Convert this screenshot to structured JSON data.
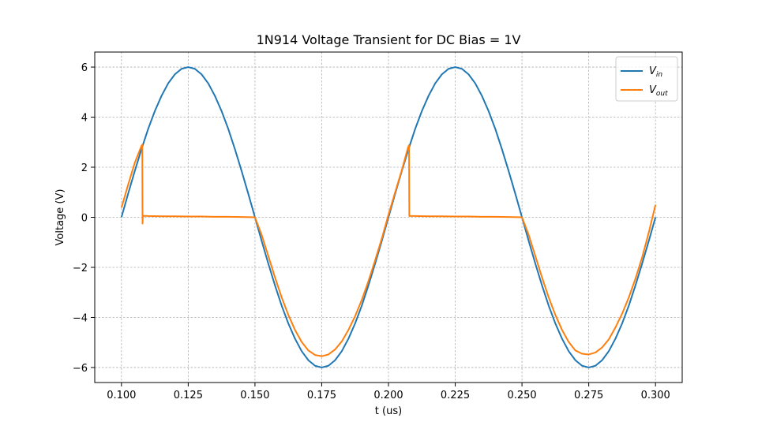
{
  "chart_data": {
    "type": "line",
    "title": "1N914 Voltage Transient for DC Bias = 1V",
    "xlabel": "t (us)",
    "ylabel": "Voltage (V)",
    "xlim": [
      0.09,
      0.31
    ],
    "ylim": [
      -6.6,
      6.6
    ],
    "xticks": [
      0.1,
      0.125,
      0.15,
      0.175,
      0.2,
      0.225,
      0.25,
      0.275,
      0.3
    ],
    "xtick_labels": [
      "0.100",
      "0.125",
      "0.150",
      "0.175",
      "0.200",
      "0.225",
      "0.250",
      "0.275",
      "0.300"
    ],
    "yticks": [
      -6,
      -4,
      -2,
      0,
      2,
      4,
      6
    ],
    "ytick_labels": [
      "−6",
      "−4",
      "−2",
      "0",
      "2",
      "4",
      "6"
    ],
    "grid": true,
    "grid_style": "dashed",
    "legend_position": "upper-right",
    "series": [
      {
        "name_base": "V",
        "name_sub": "in",
        "color": "#1f77b4",
        "x": [
          0.1,
          0.1025,
          0.105,
          0.1075,
          0.11,
          0.1125,
          0.115,
          0.1175,
          0.12,
          0.1225,
          0.125,
          0.1275,
          0.13,
          0.1325,
          0.135,
          0.1375,
          0.14,
          0.1425,
          0.145,
          0.1475,
          0.15,
          0.1525,
          0.155,
          0.1575,
          0.16,
          0.1625,
          0.165,
          0.1675,
          0.17,
          0.1725,
          0.175,
          0.1775,
          0.18,
          0.1825,
          0.185,
          0.1875,
          0.19,
          0.1925,
          0.195,
          0.1975,
          0.2,
          0.2025,
          0.205,
          0.2075,
          0.21,
          0.2125,
          0.215,
          0.2175,
          0.22,
          0.2225,
          0.225,
          0.2275,
          0.23,
          0.2325,
          0.235,
          0.2375,
          0.24,
          0.2425,
          0.245,
          0.2475,
          0.25,
          0.2525,
          0.255,
          0.2575,
          0.26,
          0.2625,
          0.265,
          0.2675,
          0.27,
          0.2725,
          0.275,
          0.2775,
          0.28,
          0.2825,
          0.285,
          0.2875,
          0.29,
          0.2925,
          0.295,
          0.2975,
          0.3
        ],
        "values": [
          0.0,
          0.94,
          1.85,
          2.72,
          3.53,
          4.24,
          4.85,
          5.35,
          5.71,
          5.93,
          6.0,
          5.93,
          5.71,
          5.35,
          4.85,
          4.24,
          3.53,
          2.72,
          1.85,
          0.94,
          0.0,
          -0.94,
          -1.85,
          -2.72,
          -3.53,
          -4.24,
          -4.85,
          -5.35,
          -5.71,
          -5.93,
          -6.0,
          -5.93,
          -5.71,
          -5.35,
          -4.85,
          -4.24,
          -3.53,
          -2.72,
          -1.85,
          -0.94,
          0.0,
          0.94,
          1.85,
          2.72,
          3.53,
          4.24,
          4.85,
          5.35,
          5.71,
          5.93,
          6.0,
          5.93,
          5.71,
          5.35,
          4.85,
          4.24,
          3.53,
          2.72,
          1.85,
          0.94,
          0.0,
          -0.94,
          -1.85,
          -2.72,
          -3.53,
          -4.24,
          -4.85,
          -5.35,
          -5.71,
          -5.93,
          -6.0,
          -5.93,
          -5.71,
          -5.35,
          -4.85,
          -4.24,
          -3.53,
          -2.72,
          -1.85,
          -0.94,
          0.0
        ]
      },
      {
        "name_base": "V",
        "name_sub": "out",
        "color": "#ff7f0e",
        "x": [
          0.1,
          0.1025,
          0.105,
          0.1075,
          0.1078,
          0.1079,
          0.108,
          0.11,
          0.115,
          0.12,
          0.125,
          0.13,
          0.135,
          0.14,
          0.145,
          0.15,
          0.1525,
          0.155,
          0.1575,
          0.16,
          0.1625,
          0.165,
          0.1675,
          0.17,
          0.1725,
          0.175,
          0.1775,
          0.18,
          0.1825,
          0.185,
          0.1875,
          0.19,
          0.1925,
          0.195,
          0.1975,
          0.2,
          0.2025,
          0.205,
          0.2073,
          0.2076,
          0.2077,
          0.2078,
          0.21,
          0.215,
          0.22,
          0.225,
          0.23,
          0.235,
          0.24,
          0.245,
          0.25,
          0.2525,
          0.255,
          0.2575,
          0.26,
          0.2625,
          0.265,
          0.2675,
          0.27,
          0.2725,
          0.275,
          0.2775,
          0.28,
          0.2825,
          0.285,
          0.2875,
          0.29,
          0.2925,
          0.295,
          0.2975,
          0.3
        ],
        "values": [
          0.38,
          1.3,
          2.18,
          2.85,
          2.9,
          -0.25,
          0.06,
          0.05,
          0.04,
          0.04,
          0.03,
          0.03,
          0.02,
          0.02,
          0.01,
          0.0,
          -0.7,
          -1.55,
          -2.4,
          -3.2,
          -3.9,
          -4.5,
          -4.98,
          -5.32,
          -5.5,
          -5.55,
          -5.48,
          -5.28,
          -4.96,
          -4.5,
          -3.95,
          -3.3,
          -2.55,
          -1.72,
          -0.85,
          0.1,
          1.0,
          1.88,
          2.78,
          2.86,
          2.88,
          0.05,
          0.05,
          0.04,
          0.04,
          0.03,
          0.03,
          0.02,
          0.02,
          0.01,
          0.0,
          -0.7,
          -1.55,
          -2.4,
          -3.2,
          -3.9,
          -4.5,
          -4.98,
          -5.32,
          -5.45,
          -5.48,
          -5.4,
          -5.2,
          -4.88,
          -4.4,
          -3.85,
          -3.2,
          -2.45,
          -1.6,
          -0.6,
          0.5
        ]
      }
    ]
  }
}
